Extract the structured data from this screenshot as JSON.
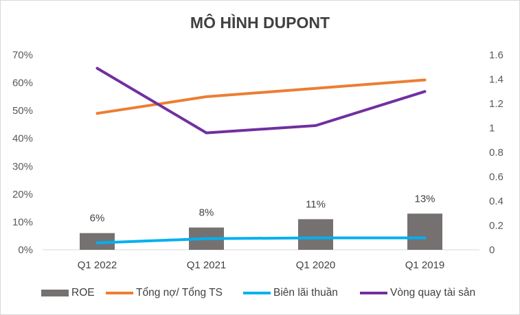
{
  "chart_data": {
    "type": "bar+line",
    "title": "MÔ HÌNH DUPONT",
    "categories": [
      "Q1 2022",
      "Q1 2021",
      "Q1 2020",
      "Q1 2019"
    ],
    "left_axis": {
      "ticks": [
        "0%",
        "10%",
        "20%",
        "30%",
        "40%",
        "50%",
        "60%",
        "70%"
      ],
      "ylim": [
        0,
        0.7
      ]
    },
    "right_axis": {
      "ticks": [
        "0",
        "0.2",
        "0.4",
        "0.6",
        "0.8",
        "1",
        "1.2",
        "1.4",
        "1.6"
      ],
      "ylim": [
        0,
        1.6
      ]
    },
    "grid": false,
    "legend_position": "bottom",
    "series": [
      {
        "name": "ROE",
        "type": "bar",
        "axis": "left",
        "color": "#767171",
        "values": [
          0.06,
          0.08,
          0.11,
          0.13
        ],
        "labels": [
          "6%",
          "8%",
          "11%",
          "13%"
        ]
      },
      {
        "name": "Tổng nợ/ Tổng TS",
        "type": "line",
        "axis": "left",
        "color": "#ed7d31",
        "values": [
          0.49,
          0.55,
          0.58,
          0.61
        ]
      },
      {
        "name": "Biên lãi thuần",
        "type": "line",
        "axis": "left",
        "color": "#00b0f0",
        "values": [
          0.025,
          0.04,
          0.043,
          0.043
        ]
      },
      {
        "name": "Vòng quay tài sản",
        "type": "line",
        "axis": "right",
        "color": "#7030a0",
        "values": [
          1.49,
          0.96,
          1.02,
          1.3
        ]
      }
    ]
  }
}
